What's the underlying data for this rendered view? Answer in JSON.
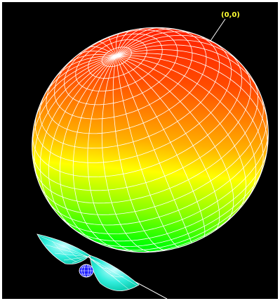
{
  "viewer": {
    "origin_label": "(0,0)"
  },
  "colors": {
    "background": "#000000",
    "frame": "#ffffff",
    "grid": "#ffffff",
    "label": "#ffff33",
    "main_lobe_top": "#ff2a00",
    "main_lobe_mid": "#ffff00",
    "main_lobe_bottom": "#00ff00",
    "side_lobe": "#33eedd",
    "back_lobe": "#2222ff"
  }
}
